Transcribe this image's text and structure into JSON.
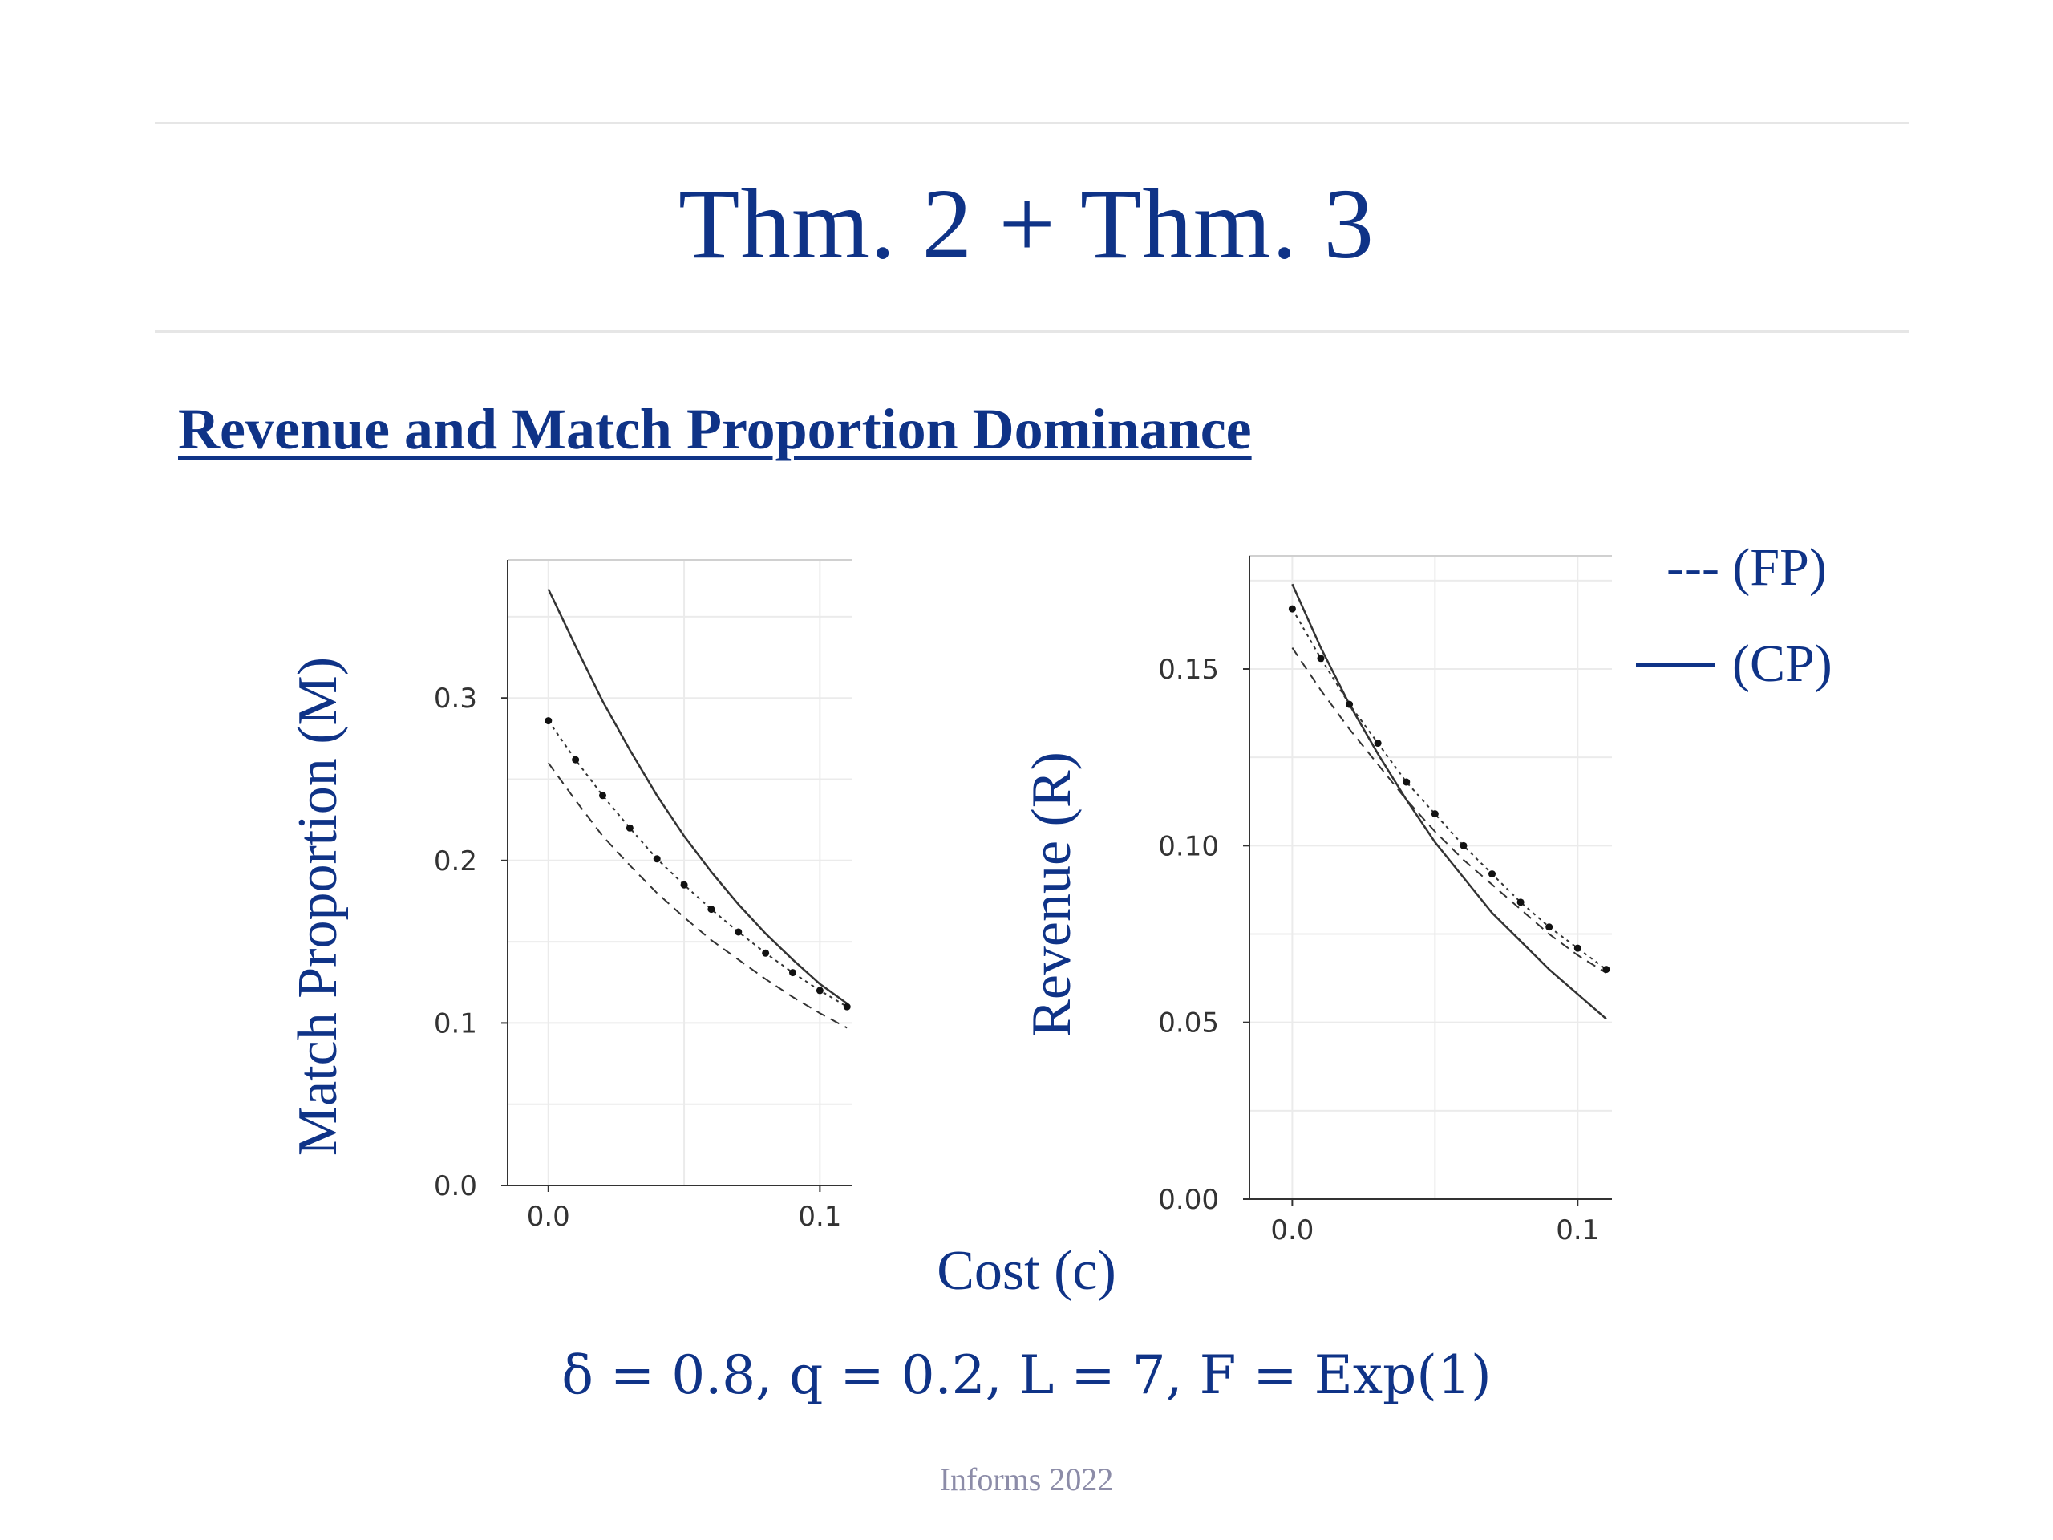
{
  "slide": {
    "title": "Thm. 2 + Thm. 3",
    "section_heading": "Revenue and Match Proportion Dominance",
    "x_axis_title": "Cost (c)",
    "params": "δ = 0.8, q = 0.2, L = 7, F = Exp(1)",
    "footer": "Informs 2022"
  },
  "legend": {
    "fp": "--- (FP)",
    "cp": "(CP)"
  },
  "colors": {
    "title": "#0f3387",
    "footer": "#8c8ca8",
    "series_line": "#333333",
    "grid": "#ebebeb"
  },
  "chart_data": [
    {
      "type": "line",
      "ylabel": "Match Proportion (M)",
      "xlabel": "Cost (c)",
      "xlim": [
        -0.015,
        0.112
      ],
      "ylim": [
        0.0,
        0.385
      ],
      "xticks": [
        "0.0",
        "0.1"
      ],
      "yticks": [
        "0.0",
        "0.1",
        "0.2",
        "0.3"
      ],
      "grid": true,
      "series": [
        {
          "name": "(CP)",
          "style": "solid",
          "markers": false,
          "x": [
            0.0,
            0.01,
            0.02,
            0.03,
            0.04,
            0.05,
            0.06,
            0.07,
            0.08,
            0.09,
            0.1,
            0.11
          ],
          "values": [
            0.367,
            0.332,
            0.298,
            0.268,
            0.24,
            0.215,
            0.193,
            0.173,
            0.155,
            0.139,
            0.124,
            0.112
          ]
        },
        {
          "name": "(FP)",
          "style": "dashed",
          "markers": false,
          "x": [
            0.0,
            0.01,
            0.02,
            0.03,
            0.04,
            0.05,
            0.06,
            0.07,
            0.08,
            0.09,
            0.1,
            0.11
          ],
          "values": [
            0.26,
            0.237,
            0.215,
            0.197,
            0.18,
            0.165,
            0.151,
            0.139,
            0.127,
            0.116,
            0.106,
            0.097
          ]
        },
        {
          "name": "",
          "style": "dotted",
          "markers": true,
          "x": [
            0.0,
            0.01,
            0.02,
            0.03,
            0.04,
            0.05,
            0.06,
            0.07,
            0.08,
            0.09,
            0.1,
            0.11
          ],
          "values": [
            0.286,
            0.262,
            0.24,
            0.22,
            0.201,
            0.185,
            0.17,
            0.156,
            0.143,
            0.131,
            0.12,
            0.11
          ]
        }
      ]
    },
    {
      "type": "line",
      "ylabel": "Revenue (R)",
      "xlabel": "Cost (c)",
      "xlim": [
        -0.015,
        0.112
      ],
      "ylim": [
        0.0,
        0.182
      ],
      "xticks": [
        "0.0",
        "0.1"
      ],
      "yticks": [
        "0.00",
        "0.05",
        "0.10",
        "0.15"
      ],
      "grid": true,
      "series": [
        {
          "name": "(CP)",
          "style": "solid",
          "markers": false,
          "x": [
            0.0,
            0.01,
            0.02,
            0.03,
            0.04,
            0.05,
            0.06,
            0.07,
            0.08,
            0.09,
            0.1,
            0.11
          ],
          "values": [
            0.174,
            0.156,
            0.14,
            0.126,
            0.113,
            0.101,
            0.091,
            0.081,
            0.073,
            0.065,
            0.058,
            0.051
          ]
        },
        {
          "name": "(FP)",
          "style": "dashed",
          "markers": false,
          "x": [
            0.0,
            0.01,
            0.02,
            0.03,
            0.04,
            0.05,
            0.06,
            0.07,
            0.08,
            0.09,
            0.1,
            0.11
          ],
          "values": [
            0.156,
            0.144,
            0.133,
            0.123,
            0.113,
            0.104,
            0.096,
            0.089,
            0.082,
            0.075,
            0.069,
            0.064
          ]
        },
        {
          "name": "",
          "style": "dotted",
          "markers": true,
          "x": [
            0.0,
            0.01,
            0.02,
            0.03,
            0.04,
            0.05,
            0.06,
            0.07,
            0.08,
            0.09,
            0.1,
            0.11
          ],
          "values": [
            0.167,
            0.153,
            0.14,
            0.129,
            0.118,
            0.109,
            0.1,
            0.092,
            0.084,
            0.077,
            0.071,
            0.065
          ]
        }
      ]
    }
  ]
}
